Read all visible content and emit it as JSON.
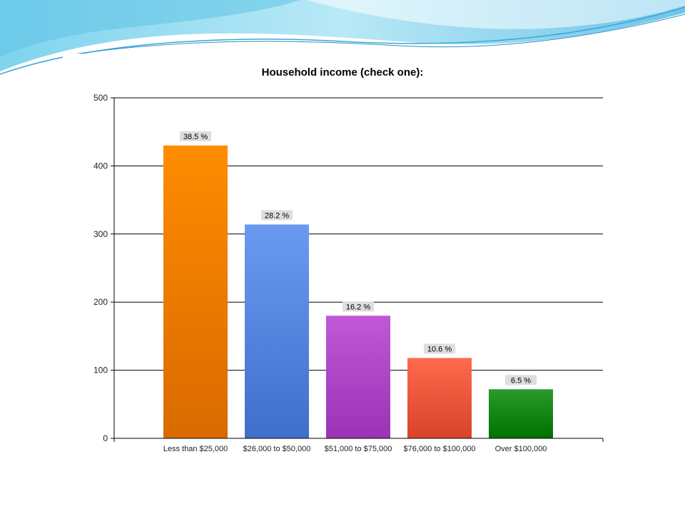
{
  "chart_data": {
    "type": "bar",
    "title": "Household income (check one):",
    "xlabel": "",
    "ylabel": "",
    "ylim": [
      0,
      500
    ],
    "yticks": [
      0,
      100,
      200,
      300,
      400,
      500
    ],
    "grid": true,
    "legend": "none",
    "categories": [
      "Less than $25,000",
      "$26,000 to $50,000",
      "$51,000 to $75,000",
      "$76,000 to $100,000",
      "Over $100,000"
    ],
    "values": [
      430,
      314,
      180,
      118,
      72
    ],
    "data_labels": [
      "38.5 %",
      "28.2 %",
      "16.2 %",
      "10.6 %",
      "6.5 %"
    ],
    "colors": [
      [
        "#ff8c00",
        "#d96a00"
      ],
      [
        "#6a9af0",
        "#3f6fcb"
      ],
      [
        "#c058d8",
        "#9a34b4"
      ],
      [
        "#ff6a4d",
        "#d8432a"
      ],
      [
        "#2a9a2a",
        "#007000"
      ]
    ]
  }
}
